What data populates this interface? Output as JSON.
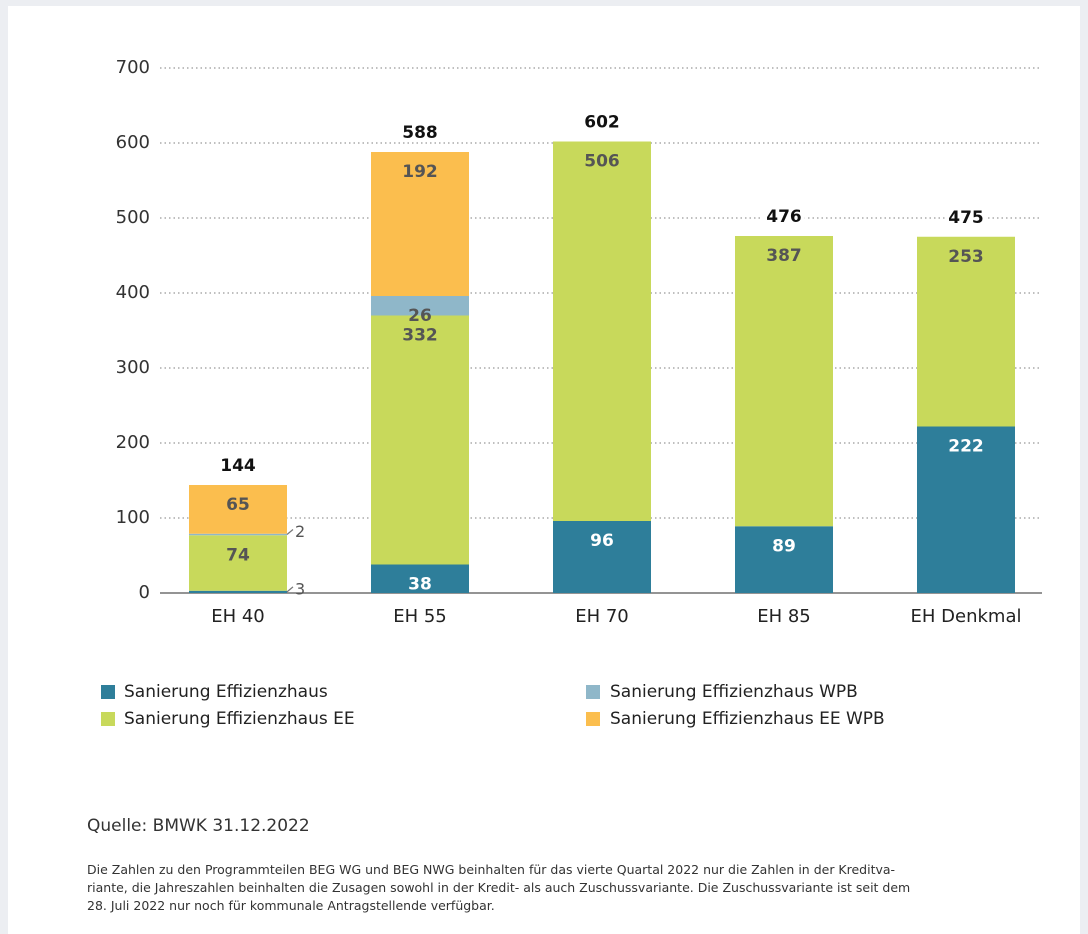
{
  "chart_data": {
    "type": "stacked-bar",
    "categories": [
      "EH 40",
      "EH 55",
      "EH 70",
      "EH 85",
      "EH Denkmal"
    ],
    "series": [
      {
        "name": "Sanierung Effizienzhaus",
        "color": "#2e7e9a",
        "values": [
          3,
          38,
          96,
          89,
          222
        ]
      },
      {
        "name": "Sanierung Effizienzhaus EE",
        "color": "#c8d95b",
        "values": [
          74,
          332,
          506,
          387,
          253
        ]
      },
      {
        "name": "Sanierung Effizienzhaus WPB",
        "color": "#8fb7c9",
        "values": [
          2,
          26,
          null,
          null,
          null
        ]
      },
      {
        "name": "Sanierung Effizienzhaus EE WPB",
        "color": "#fbbe4e",
        "values": [
          65,
          192,
          null,
          null,
          null
        ]
      }
    ],
    "totals": [
      144,
      588,
      602,
      476,
      475
    ],
    "ylim": [
      0,
      700
    ],
    "yticks": [
      0,
      100,
      200,
      300,
      400,
      500,
      600,
      700
    ],
    "grid": true,
    "source": "Quelle: BMWK 31.12.2022",
    "notes": [
      "Die Zahlen zu den Programmteilen BEG WG und BEG NWG beinhalten für das vierte Quartal 2022 nur die Zahlen in der Kreditva-",
      "riante, die Jahreszahlen beinhalten die Zusagen sowohl in der Kredit- als auch Zuschussvariante. Die Zuschussvariante ist seit dem",
      "28. Juli 2022 nur noch für kommunale Antragstellende verfügbar."
    ]
  }
}
